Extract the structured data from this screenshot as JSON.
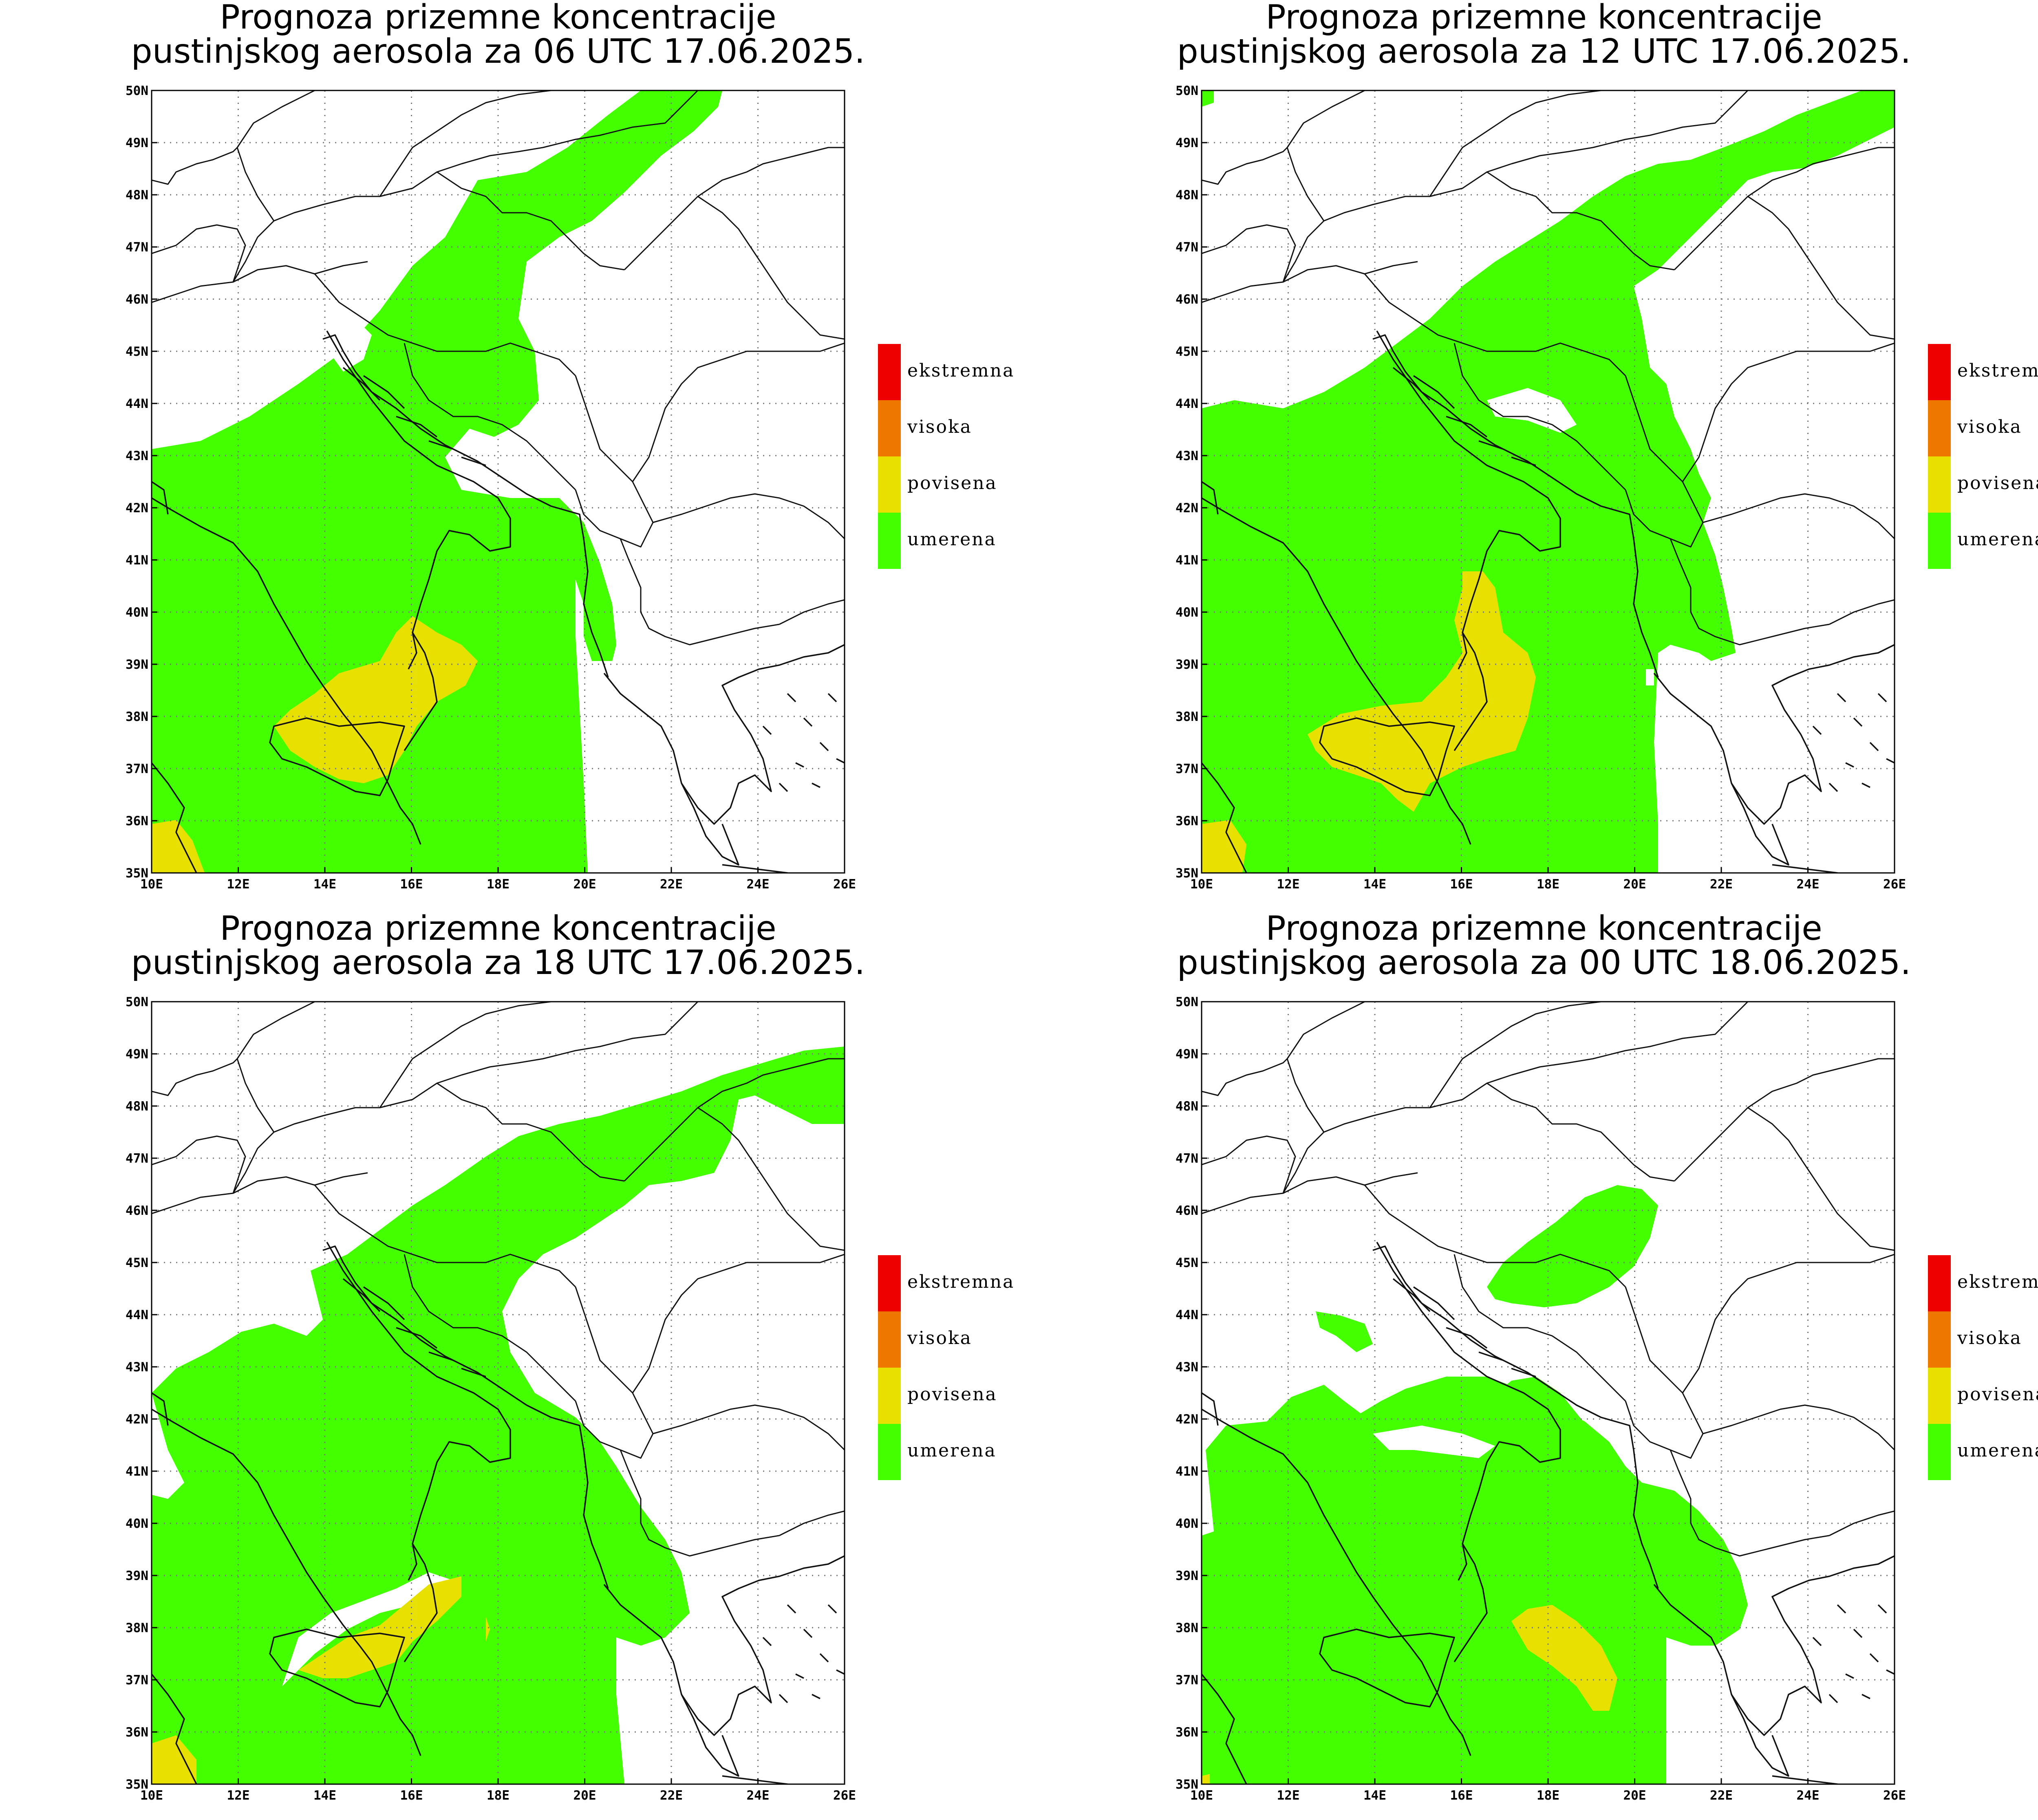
{
  "panels": [
    {
      "title_line1": "Prognoza prizemne koncentracije",
      "title_line2": "pustinjskog aerosola za 06 UTC 17.06.2025."
    },
    {
      "title_line1": "Prognoza prizemne koncentracije",
      "title_line2": "pustinjskog aerosola za 12 UTC 17.06.2025."
    },
    {
      "title_line1": "Prognoza prizemne koncentracije",
      "title_line2": "pustinjskog aerosola za 18 UTC 17.06.2025."
    },
    {
      "title_line1": "Prognoza prizemne koncentracije",
      "title_line2": "pustinjskog aerosola za 00 UTC 18.06.2025."
    }
  ],
  "axes": {
    "lon_labels": [
      "10E",
      "12E",
      "14E",
      "16E",
      "18E",
      "20E",
      "22E",
      "24E",
      "26E"
    ],
    "lat_labels": [
      "35N",
      "36N",
      "37N",
      "38N",
      "39N",
      "40N",
      "41N",
      "42N",
      "43N",
      "44N",
      "45N",
      "46N",
      "47N",
      "48N",
      "49N",
      "50N"
    ]
  },
  "legend": [
    {
      "label": "ekstremna",
      "color": "#ee0000"
    },
    {
      "label": "visoka",
      "color": "#ee7700"
    },
    {
      "label": "povisena",
      "color": "#e8e000"
    },
    {
      "label": "umerena",
      "color": "#44ff00"
    }
  ],
  "colors": {
    "umerena": "#44ff00",
    "povisena": "#e8e000",
    "visoka": "#ee7700",
    "ekstremna": "#ee0000"
  },
  "map_extent": {
    "lon_min": 10,
    "lon_max": 26,
    "lat_min": 35,
    "lat_max": 50
  }
}
